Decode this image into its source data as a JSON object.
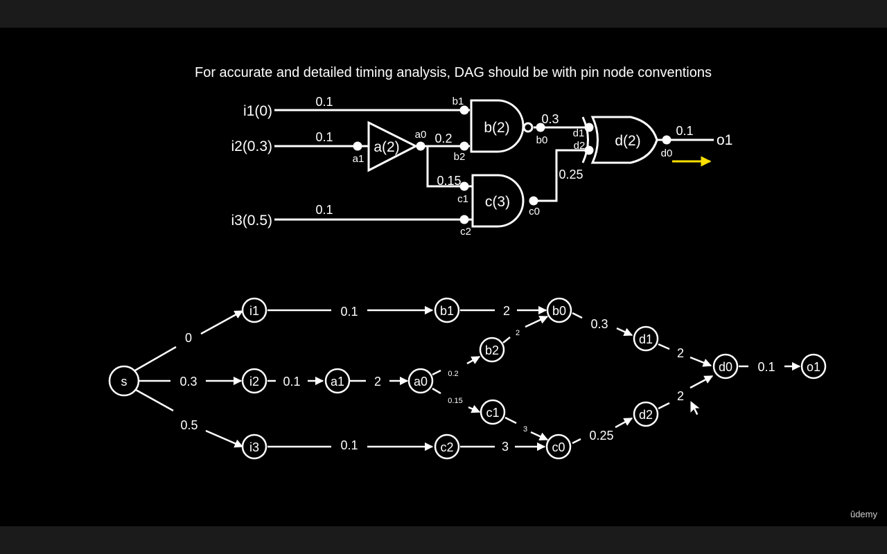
{
  "title": "For accurate  and detailed timing analysis, DAG should be with pin node conventions",
  "watermark": "ûdemy",
  "circuit": {
    "inputs": [
      "i1(0)",
      "i2(0.3)",
      "i3(0.5)"
    ],
    "output": "o1",
    "gates": [
      "a(2)",
      "b(2)",
      "c(3)",
      "d(2)"
    ],
    "pins": [
      "a1",
      "a0",
      "b1",
      "b2",
      "b0",
      "c1",
      "c2",
      "c0",
      "d1",
      "d2",
      "d0"
    ],
    "wire_delays": {
      "i1_b1": "0.1",
      "i2_a1": "0.1",
      "a0_b2": "0.2",
      "a0_c1": "0.15",
      "i3_c2": "0.1",
      "b0_d1": "0.3",
      "c0_d2": "0.25",
      "d0_o1": "0.1"
    }
  },
  "dag": {
    "nodes": [
      "s",
      "i1",
      "i2",
      "i3",
      "a1",
      "a0",
      "b1",
      "b2",
      "b0",
      "c1",
      "c2",
      "c0",
      "d1",
      "d2",
      "d0",
      "o1"
    ],
    "edge_labels": {
      "s_i1": "0",
      "s_i2": "0.3",
      "s_i3": "0.5",
      "i1_b1": "0.1",
      "i2_a1": "0.1",
      "i3_c2": "0.1",
      "a1_a0": "2",
      "a0_b2": "0.2",
      "a0_c1": "0.15",
      "b1_b0": "2",
      "b2_b0": "2",
      "c1_c0": "3",
      "c2_c0": "3",
      "b0_d1": "0.3",
      "c0_d2": "0.25",
      "d1_d0": "2",
      "d2_d0": "2",
      "d0_o1": "0.1"
    }
  }
}
